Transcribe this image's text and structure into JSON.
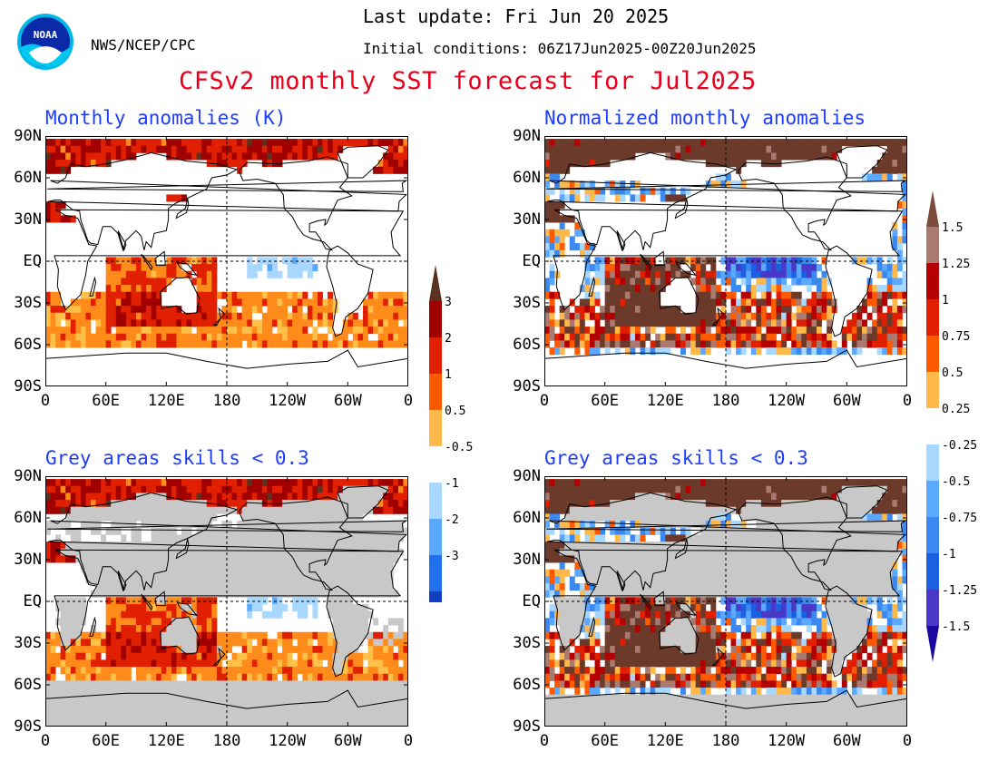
{
  "header": {
    "logo_text": "NOAA",
    "agency": "NWS/NCEP/CPC",
    "last_update": "Last update: Fri Jun 20 2025",
    "initial_conditions": "Initial conditions: 06Z17Jun2025-00Z20Jun2025",
    "title": "CFSv2 monthly SST forecast for Jul2025"
  },
  "panels": [
    {
      "title": "Monthly anomalies (K)",
      "type": "anomaly"
    },
    {
      "title": "Normalized monthly anomalies",
      "type": "normalized"
    },
    {
      "title": "Grey areas skills < 0.3",
      "type": "anomaly-skill"
    },
    {
      "title": "Grey areas skills < 0.3",
      "type": "normalized-skill"
    }
  ],
  "axes": {
    "lat_labels": [
      "90N",
      "60N",
      "30N",
      "EQ",
      "30S",
      "60S",
      "90S"
    ],
    "lon_labels": [
      "0",
      "60E",
      "120E",
      "180",
      "120W",
      "60W",
      "0"
    ]
  },
  "colorbar_anomaly": {
    "labels": [
      "3",
      "2",
      "1",
      "0.5",
      "-0.5",
      "-1",
      "-2",
      "-3"
    ],
    "colors_warm": [
      "#5a3320",
      "#a00000",
      "#e02000",
      "#ff5a00",
      "#ffb84a"
    ],
    "colors_cold": [
      "#a8d8ff",
      "#5aa8ff",
      "#2070f0",
      "#1040c0",
      "#1a0aa0"
    ]
  },
  "colorbar_normalized": {
    "labels": [
      "1.5",
      "1.25",
      "1",
      "0.75",
      "0.5",
      "0.25",
      "-0.25",
      "-0.5",
      "-0.75",
      "-1",
      "-1.25",
      "-1.5"
    ],
    "colors_warm": [
      "#7a4a3a",
      "#a87a70",
      "#b40000",
      "#e01e00",
      "#ff5a00",
      "#ffb84a"
    ],
    "colors_cold": [
      "#a8d8ff",
      "#5aa8ff",
      "#3a88f0",
      "#1a60e0",
      "#4a38c8",
      "#1a0aa0"
    ]
  },
  "colors": {
    "title_red": "#e8001c",
    "panel_title_blue": "#1e3cff",
    "skill_grey": "#c8c8c8",
    "land_white": "#ffffff"
  }
}
